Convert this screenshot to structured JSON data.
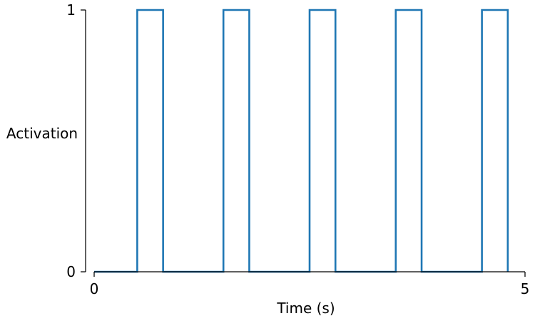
{
  "chart_data": {
    "type": "line",
    "xlabel": "Time (s)",
    "ylabel": "Activation",
    "xlim": [
      0,
      5
    ],
    "ylim": [
      0,
      1
    ],
    "x_ticks": [
      0,
      5
    ],
    "y_ticks": [
      0,
      1
    ],
    "x_tick_labels": [
      "0",
      "5"
    ],
    "y_tick_labels": [
      "0",
      "1"
    ],
    "grid": false,
    "series": [
      {
        "color": "#1f77b4",
        "x": [
          0,
          0.5,
          0.5,
          0.8,
          0.8,
          1.5,
          1.5,
          1.8,
          1.8,
          2.5,
          2.5,
          2.8,
          2.8,
          3.5,
          3.5,
          3.8,
          3.8,
          4.5,
          4.5,
          4.8,
          4.8
        ],
        "y": [
          0,
          0,
          1,
          1,
          0,
          0,
          1,
          1,
          0,
          0,
          1,
          1,
          0,
          0,
          1,
          1,
          0,
          0,
          1,
          1,
          0
        ]
      }
    ]
  }
}
